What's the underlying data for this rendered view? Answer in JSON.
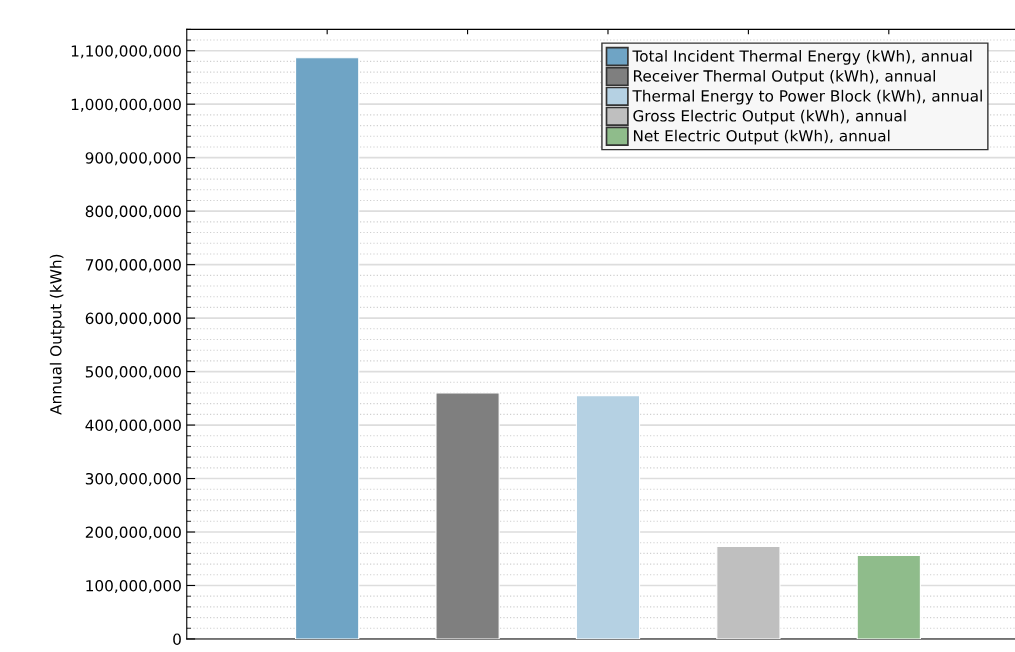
{
  "chart_data": {
    "type": "bar",
    "ylabel": "Annual Output (kWh)",
    "categories": [
      null,
      null,
      null,
      null,
      null
    ],
    "series": [
      {
        "name": "Total Incident Thermal Energy (kWh), annual",
        "color": "#6fa4c5",
        "values": [
          1087000000,
          null,
          null,
          null,
          null
        ]
      },
      {
        "name": "Receiver Thermal Output (kWh), annual",
        "color": "#7f7f7f",
        "values": [
          null,
          460000000,
          null,
          null,
          null
        ]
      },
      {
        "name": "Thermal Energy to Power Block (kWh), annual",
        "color": "#b5d1e3",
        "values": [
          null,
          null,
          455000000,
          null,
          null
        ]
      },
      {
        "name": "Gross Electric Output (kWh), annual",
        "color": "#bfbfbf",
        "values": [
          null,
          null,
          null,
          173000000,
          null
        ]
      },
      {
        "name": "Net Electric Output (kWh), annual",
        "color": "#8fbc8b",
        "values": [
          null,
          null,
          null,
          null,
          156000000
        ]
      }
    ],
    "ylim": [
      0,
      1140000000
    ],
    "yticks": [
      {
        "value": 0,
        "label": "0"
      },
      {
        "value": 100000000,
        "label": "100,000,000"
      },
      {
        "value": 200000000,
        "label": "200,000,000"
      },
      {
        "value": 300000000,
        "label": "300,000,000"
      },
      {
        "value": 400000000,
        "label": "400,000,000"
      },
      {
        "value": 500000000,
        "label": "500,000,000"
      },
      {
        "value": 600000000,
        "label": "600,000,000"
      },
      {
        "value": 700000000,
        "label": "700,000,000"
      },
      {
        "value": 800000000,
        "label": "800,000,000"
      },
      {
        "value": 900000000,
        "label": "900,000,000"
      },
      {
        "value": 1000000000,
        "label": "1,000,000,000"
      },
      {
        "value": 1100000000,
        "label": "1,100,000,000"
      }
    ],
    "grid": "y",
    "legend": "top right"
  }
}
